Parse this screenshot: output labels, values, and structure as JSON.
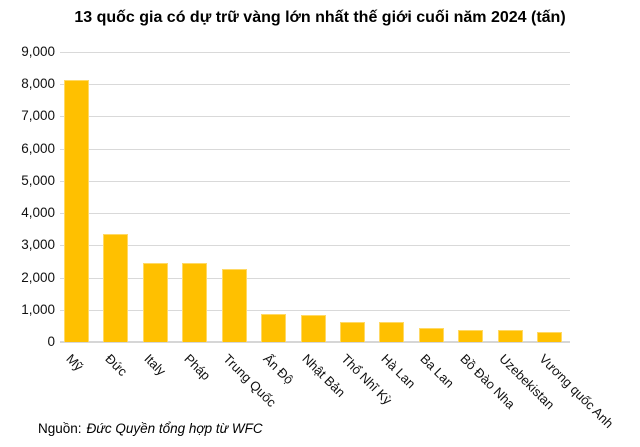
{
  "chart_data": {
    "type": "bar",
    "title": "13 quốc gia có dự trữ vàng lớn nhất thế giới cuối năm 2024 (tấn)",
    "categories": [
      "Mỹ",
      "Đức",
      "Italy",
      "Pháp",
      "Trung Quốc",
      "Ấn Độ",
      "Nhật Bản",
      "Thổ Nhĩ Kỳ",
      "Hà Lan",
      "Ba Lan",
      "Bồ Đào Nha",
      "Uzebekistan",
      "Vương quốc Anh"
    ],
    "values": [
      8133,
      3352,
      2452,
      2437,
      2280,
      876,
      846,
      615,
      612,
      448,
      383,
      382,
      310
    ],
    "xlabel": "",
    "ylabel": "",
    "ylim": [
      0,
      9000
    ],
    "ytick_step": 1000,
    "ytick_labels_top_to_bottom": [
      "9,000",
      "8,000",
      "7,000",
      "6,000",
      "5,000",
      "4,000",
      "3,000",
      "2,000",
      "1,000",
      "0"
    ],
    "grid": true,
    "legend": "none",
    "bar_color": "#FFC000",
    "bar_edge_color": "#FFD965",
    "gridline_color": "#D9D9D9",
    "unit": "tấn"
  },
  "source": {
    "label": "Nguồn:",
    "credit": "Đức Quyền tổng hợp từ WFC"
  }
}
